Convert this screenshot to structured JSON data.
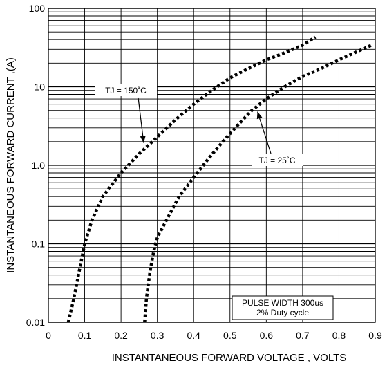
{
  "chart_data": {
    "type": "line",
    "xlabel": "INSTANTANEOUS FORWARD VOLTAGE , VOLTS",
    "ylabel": "INSTANTANEOUS  FORWARD CURRENT ,(A)",
    "xlim": [
      0,
      0.9
    ],
    "ylim": [
      0.01,
      100
    ],
    "yscale": "log",
    "grid": true,
    "x_ticks": [
      {
        "value": 0,
        "label": "0"
      },
      {
        "value": 0.1,
        "label": "0.1"
      },
      {
        "value": 0.2,
        "label": "0.2"
      },
      {
        "value": 0.3,
        "label": "0.3"
      },
      {
        "value": 0.4,
        "label": "0.4"
      },
      {
        "value": 0.5,
        "label": "0.5"
      },
      {
        "value": 0.6,
        "label": "0.6"
      },
      {
        "value": 0.7,
        "label": "0.7"
      },
      {
        "value": 0.8,
        "label": "0.8"
      },
      {
        "value": 0.9,
        "label": "0.9"
      }
    ],
    "y_ticks": [
      {
        "value": 0.01,
        "label": "0.01"
      },
      {
        "value": 0.1,
        "label": "0.1"
      },
      {
        "value": 1,
        "label": "1.0"
      },
      {
        "value": 10,
        "label": "10"
      },
      {
        "value": 100,
        "label": "100"
      }
    ],
    "series": [
      {
        "name": "TJ = 150˚C",
        "color": "#000000",
        "style": "dotted",
        "x": [
          0.055,
          0.07,
          0.085,
          0.1,
          0.12,
          0.15,
          0.2,
          0.25,
          0.3,
          0.35,
          0.4,
          0.45,
          0.5,
          0.55,
          0.6,
          0.65,
          0.7,
          0.735
        ],
        "y": [
          0.01,
          0.02,
          0.045,
          0.1,
          0.2,
          0.4,
          0.8,
          1.4,
          2.3,
          3.8,
          6,
          9,
          13,
          17,
          22,
          27,
          34,
          43
        ]
      },
      {
        "name": "TJ = 25˚C",
        "color": "#000000",
        "style": "dotted",
        "x": [
          0.265,
          0.27,
          0.28,
          0.29,
          0.3,
          0.33,
          0.36,
          0.4,
          0.44,
          0.48,
          0.52,
          0.56,
          0.6,
          0.65,
          0.7,
          0.75,
          0.8,
          0.85,
          0.89
        ],
        "y": [
          0.01,
          0.02,
          0.045,
          0.08,
          0.12,
          0.22,
          0.4,
          0.7,
          1.2,
          2,
          3.2,
          5,
          7,
          10,
          13.5,
          17,
          22,
          28,
          34
        ]
      }
    ],
    "annotations": [
      {
        "text": "TJ = 150˚C",
        "series": 0,
        "arrow_to_x": 0.27
      },
      {
        "text": "TJ = 25˚C",
        "series": 1,
        "arrow_to_x": 0.57
      },
      {
        "text_lines": [
          "PULSE WIDTH 300us",
          "2% Duty cycle"
        ]
      }
    ]
  }
}
